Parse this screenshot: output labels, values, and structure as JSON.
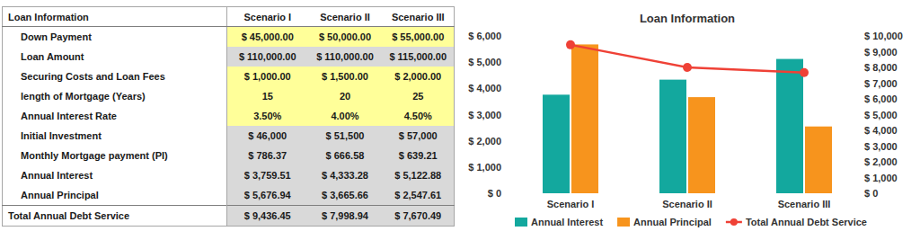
{
  "table": {
    "header": [
      "Loan Information",
      "Scenario I",
      "Scenario II",
      "Scenario III"
    ],
    "rows": [
      [
        "Down Payment",
        "$ 45,000.00",
        "$ 50,000.00",
        "$ 55,000.00"
      ],
      [
        "Loan Amount",
        "$ 110,000.00",
        "$ 110,000.00",
        "$ 115,000.00"
      ],
      [
        "Securing Costs and Loan Fees",
        "$ 1,000.00",
        "$ 1,500.00",
        "$ 2,000.00"
      ],
      [
        "length of Mortgage (Years)",
        "15",
        "20",
        "25"
      ],
      [
        "Annual Interest Rate",
        "3.50%",
        "4.00%",
        "4.50%"
      ],
      [
        "Initial Investment",
        "$ 46,000",
        "$ 51,500",
        "$ 57,000"
      ],
      [
        "Monthly Mortgage payment (PI)",
        "$ 786.37",
        "$ 666.58",
        "$ 639.21"
      ],
      [
        "Annual Interest",
        "$ 3,759.51",
        "$ 4,333.28",
        "$ 5,122.88"
      ],
      [
        "Annual Principal",
        "$ 5,676.94",
        "$ 3,665.66",
        "$ 2,547.61"
      ],
      [
        "Total Annual Debt Service",
        "$ 9,436.45",
        "$ 7,998.94",
        "$ 7,670.49"
      ]
    ]
  },
  "chart_data": {
    "type": "bar",
    "title": "Loan Information",
    "categories": [
      "Scenario I",
      "Scenario II",
      "Scenario III"
    ],
    "series": [
      {
        "name": "Annual Interest",
        "type": "bar",
        "color": "#13a89e",
        "values": [
          3759.51,
          4333.28,
          5122.88
        ]
      },
      {
        "name": "Annual Principal",
        "type": "bar",
        "color": "#f7941d",
        "values": [
          5676.94,
          3665.66,
          2547.61
        ]
      },
      {
        "name": "Total Annual Debt Service",
        "type": "line",
        "color": "#ef4136",
        "marker": "circle",
        "axis": "y2",
        "values": [
          9436.45,
          7998.94,
          7670.49
        ]
      }
    ],
    "ylim": [
      0,
      6000
    ],
    "yticks": [
      {
        "value": 0,
        "label": "$ 0"
      },
      {
        "value": 1000,
        "label": "$ 1,000"
      },
      {
        "value": 2000,
        "label": "$ 2,000"
      },
      {
        "value": 3000,
        "label": "$ 3,000"
      },
      {
        "value": 4000,
        "label": "$ 4,000"
      },
      {
        "value": 5000,
        "label": "$ 5,000"
      },
      {
        "value": 6000,
        "label": "$ 6,000"
      }
    ],
    "y2lim": [
      0,
      10000
    ],
    "y2ticks": [
      {
        "value": 0,
        "label": "$ 0"
      },
      {
        "value": 1000,
        "label": "$ 1,000"
      },
      {
        "value": 2000,
        "label": "$ 2,000"
      },
      {
        "value": 3000,
        "label": "$ 3,000"
      },
      {
        "value": 4000,
        "label": "$ 4,000"
      },
      {
        "value": 5000,
        "label": "$ 5,000"
      },
      {
        "value": 6000,
        "label": "$ 6,000"
      },
      {
        "value": 7000,
        "label": "$ 7,000"
      },
      {
        "value": 8000,
        "label": "$ 8,000"
      },
      {
        "value": 9000,
        "label": "$ 9,000"
      },
      {
        "value": 10000,
        "label": "$ 10,000"
      }
    ],
    "grid": false,
    "legend": "bottom",
    "data_labels": false
  }
}
